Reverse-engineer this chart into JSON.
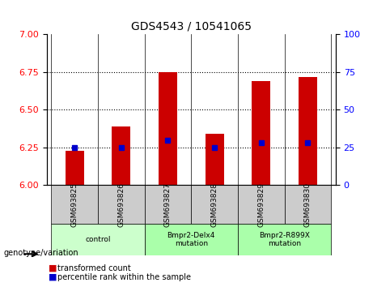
{
  "title": "GDS4543 / 10541065",
  "samples": [
    "GSM693825",
    "GSM693826",
    "GSM693827",
    "GSM693828",
    "GSM693829",
    "GSM693830"
  ],
  "transformed_counts": [
    6.23,
    6.39,
    6.75,
    6.34,
    6.69,
    6.72
  ],
  "percentile_ranks": [
    25,
    25,
    30,
    25,
    28,
    28
  ],
  "ylim_left": [
    6.0,
    7.0
  ],
  "ylim_right": [
    0,
    100
  ],
  "yticks_left": [
    6.0,
    6.25,
    6.5,
    6.75,
    7.0
  ],
  "yticks_right": [
    0,
    25,
    50,
    75,
    100
  ],
  "bar_color": "#cc0000",
  "dot_color": "#0000cc",
  "background_plot": "#ffffff",
  "background_xticklabels": "#cccccc",
  "grid_color": "#000000",
  "groups": [
    {
      "label": "control",
      "samples": [
        0,
        1
      ],
      "color": "#ccffcc"
    },
    {
      "label": "Bmpr2-Delx4\nmutation",
      "samples": [
        2,
        3
      ],
      "color": "#aaffaa"
    },
    {
      "label": "Bmpr2-R899X\nmutation",
      "samples": [
        4,
        5
      ],
      "color": "#aaffaa"
    }
  ],
  "legend_items": [
    {
      "color": "#cc0000",
      "label": "transformed count"
    },
    {
      "color": "#0000cc",
      "label": "percentile rank within the sample"
    }
  ],
  "genotype_label": "genotype/variation",
  "bar_width": 0.4
}
